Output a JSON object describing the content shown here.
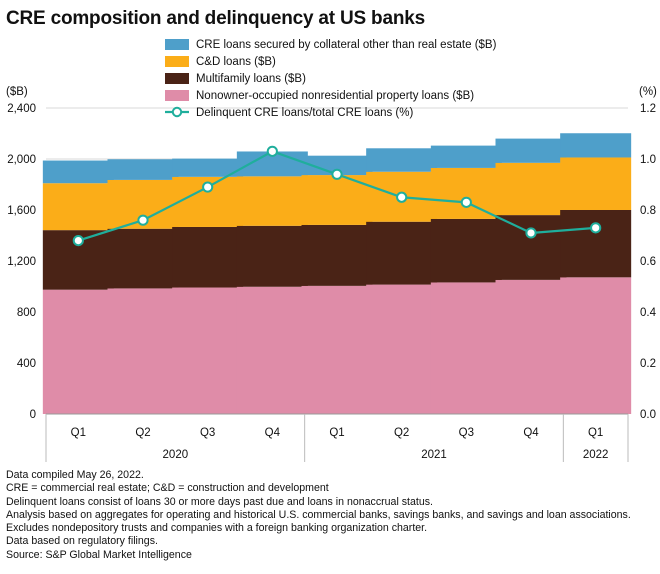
{
  "chart_data": {
    "type": "bar",
    "title": "CRE composition and delinquency at US banks",
    "categories": [
      "Q1",
      "Q2",
      "Q3",
      "Q4",
      "Q1",
      "Q2",
      "Q3",
      "Q4",
      "Q1"
    ],
    "years": [
      {
        "label": "2020",
        "start": 0,
        "end": 3
      },
      {
        "label": "2021",
        "start": 4,
        "end": 7
      },
      {
        "label": "2022",
        "start": 8,
        "end": 8
      }
    ],
    "left_axis": {
      "unit_label": "($B)",
      "ylim": [
        0,
        2400
      ],
      "ticks": [
        0,
        400,
        800,
        1200,
        1600,
        2000,
        2400
      ],
      "tick_labels": [
        "0",
        "400",
        "800",
        "1,200",
        "1,600",
        "2,000",
        "2,400"
      ]
    },
    "right_axis": {
      "unit_label": "(%)",
      "ylim": [
        0,
        1.2
      ],
      "ticks": [
        0,
        0.2,
        0.4,
        0.6,
        0.8,
        1.0,
        1.2
      ],
      "tick_labels": [
        "0.0",
        "0.2",
        "0.4",
        "0.6",
        "0.8",
        "1.0",
        "1.2"
      ]
    },
    "stacked_series": [
      {
        "name": "Nonowner-occupied nonresidential property loans ($B)",
        "color": "#df8ca8",
        "values": [
          975,
          985,
          992,
          998,
          1005,
          1015,
          1032,
          1052,
          1072
        ]
      },
      {
        "name": "Multifamily loans ($B)",
        "color": "#4a2316",
        "values": [
          467,
          468,
          475,
          478,
          478,
          493,
          498,
          508,
          528
        ]
      },
      {
        "name": "C&D loans ($B)",
        "color": "#fbad18",
        "values": [
          368,
          383,
          393,
          388,
          391,
          392,
          400,
          410,
          412
        ]
      },
      {
        "name": "CRE loans secured by collateral other than real estate ($B)",
        "color": "#4e9fca",
        "values": [
          178,
          162,
          143,
          195,
          152,
          184,
          175,
          190,
          190
        ]
      }
    ],
    "line_series": {
      "name": "Delinquent CRE loans/total CRE loans (%)",
      "color": "#1fae9c",
      "values": [
        0.68,
        0.76,
        0.89,
        1.03,
        0.94,
        0.85,
        0.83,
        0.71,
        0.73
      ]
    },
    "legend_order": [
      3,
      2,
      1,
      0
    ],
    "legend_placement": "top-center",
    "grid": true
  },
  "notes": [
    "Data compiled May 26, 2022.",
    "CRE = commercial real estate; C&D = construction and development",
    "Delinquent loans consist of loans 30 or more days past due and loans in nonaccrual status.",
    "Analysis based on aggregates for operating and historical U.S. commercial banks, savings banks, and savings and loan associations. Excludes nondepository trusts and companies with a foreign banking organization charter.",
    "Data based on regulatory filings.",
    "Source: S&P Global Market Intelligence"
  ]
}
